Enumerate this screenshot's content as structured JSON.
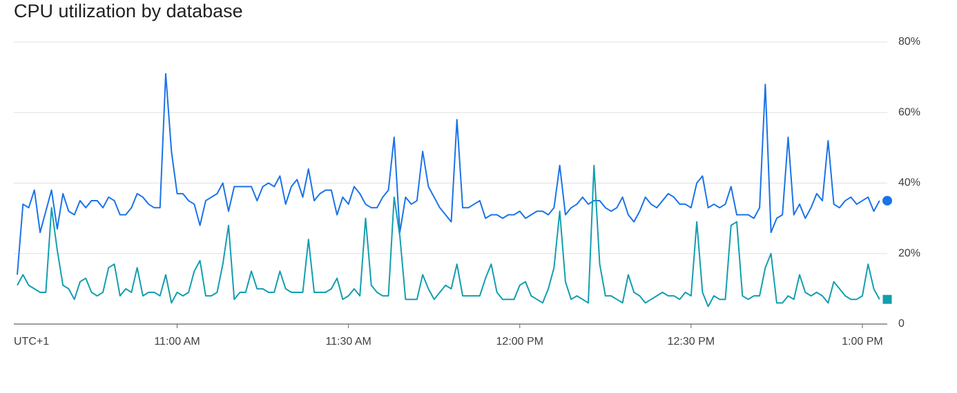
{
  "chart_data": {
    "type": "line",
    "title": "CPU utilization by database",
    "x_axis_label": "UTC+1",
    "categories": [
      null,
      null,
      null,
      null,
      null,
      null,
      null,
      null,
      null,
      null,
      null,
      null,
      null,
      null,
      null,
      null,
      null,
      null,
      null,
      null,
      null,
      null,
      null,
      null,
      null,
      null,
      null,
      null,
      "11:00 AM",
      null,
      null,
      null,
      null,
      null,
      null,
      null,
      null,
      null,
      null,
      null,
      null,
      null,
      null,
      null,
      null,
      null,
      null,
      null,
      null,
      null,
      null,
      null,
      null,
      null,
      null,
      null,
      null,
      null,
      "11:30 AM",
      null,
      null,
      null,
      null,
      null,
      null,
      null,
      null,
      null,
      null,
      null,
      null,
      null,
      null,
      null,
      null,
      null,
      null,
      null,
      null,
      null,
      null,
      null,
      null,
      null,
      null,
      null,
      null,
      null,
      "12:00 PM",
      null,
      null,
      null,
      null,
      null,
      null,
      null,
      null,
      null,
      null,
      null,
      null,
      null,
      null,
      null,
      null,
      null,
      null,
      null,
      null,
      null,
      null,
      null,
      null,
      null,
      null,
      null,
      null,
      null,
      "12:30 PM",
      null,
      null,
      null,
      null,
      null,
      null,
      null,
      null,
      null,
      null,
      null,
      null,
      null,
      null,
      null,
      null,
      null,
      null,
      null,
      null,
      null,
      null,
      null,
      null,
      null,
      null,
      null,
      null,
      null,
      "1:00 PM",
      null,
      null,
      null
    ],
    "series": [
      {
        "color": "#1a73e8",
        "end_marker": "circle",
        "values": [
          14,
          34,
          33,
          38,
          26,
          32,
          38,
          27,
          37,
          32,
          31,
          35,
          33,
          35,
          35,
          33,
          36,
          35,
          31,
          31,
          33,
          37,
          36,
          34,
          33,
          33,
          71,
          49,
          37,
          37,
          35,
          34,
          28,
          35,
          36,
          37,
          40,
          32,
          39,
          39,
          39,
          39,
          35,
          39,
          40,
          39,
          42,
          34,
          39,
          41,
          36,
          44,
          35,
          37,
          38,
          38,
          31,
          36,
          34,
          39,
          37,
          34,
          33,
          33,
          36,
          38,
          53,
          26,
          36,
          34,
          35,
          49,
          39,
          36,
          33,
          31,
          29,
          58,
          33,
          33,
          34,
          35,
          30,
          31,
          31,
          30,
          31,
          31,
          32,
          30,
          31,
          32,
          32,
          31,
          33,
          45,
          31,
          33,
          34,
          36,
          34,
          35,
          35,
          33,
          32,
          33,
          36,
          31,
          29,
          32,
          36,
          34,
          33,
          35,
          37,
          36,
          34,
          34,
          33,
          40,
          42,
          33,
          34,
          33,
          34,
          39,
          31,
          31,
          31,
          30,
          33,
          68,
          26,
          30,
          31,
          53,
          31,
          34,
          30,
          33,
          37,
          35,
          52,
          34,
          33,
          35,
          36,
          34,
          35,
          36,
          32,
          35
        ]
      },
      {
        "color": "#129eaf",
        "end_marker": "square",
        "values": [
          11,
          14,
          11,
          10,
          9,
          9,
          33,
          21,
          11,
          10,
          7,
          12,
          13,
          9,
          8,
          9,
          16,
          17,
          8,
          10,
          9,
          16,
          8,
          9,
          9,
          8,
          14,
          6,
          9,
          8,
          9,
          15,
          18,
          8,
          8,
          9,
          17,
          28,
          7,
          9,
          9,
          15,
          10,
          10,
          9,
          9,
          15,
          10,
          9,
          9,
          9,
          24,
          9,
          9,
          9,
          10,
          13,
          7,
          8,
          10,
          8,
          30,
          11,
          9,
          8,
          8,
          36,
          25,
          7,
          7,
          7,
          14,
          10,
          7,
          9,
          11,
          10,
          17,
          8,
          8,
          8,
          8,
          13,
          17,
          9,
          7,
          7,
          7,
          11,
          12,
          8,
          7,
          6,
          10,
          16,
          32,
          12,
          7,
          8,
          7,
          6,
          45,
          17,
          8,
          8,
          7,
          6,
          14,
          9,
          8,
          6,
          7,
          8,
          9,
          8,
          8,
          7,
          9,
          8,
          29,
          9,
          5,
          8,
          7,
          7,
          28,
          29,
          8,
          7,
          8,
          8,
          16,
          20,
          6,
          6,
          8,
          7,
          14,
          9,
          8,
          9,
          8,
          6,
          12,
          10,
          8,
          7,
          7,
          8,
          17,
          10,
          7
        ]
      }
    ],
    "ylim": [
      0,
      80
    ],
    "yticks": [
      0,
      {
        "value": 20,
        "label": "20%"
      },
      {
        "value": 40,
        "label": "40%"
      },
      {
        "value": 60,
        "label": "60%"
      },
      {
        "value": 80,
        "label": "80%"
      }
    ],
    "y_axis_side": "right",
    "grid": true
  }
}
